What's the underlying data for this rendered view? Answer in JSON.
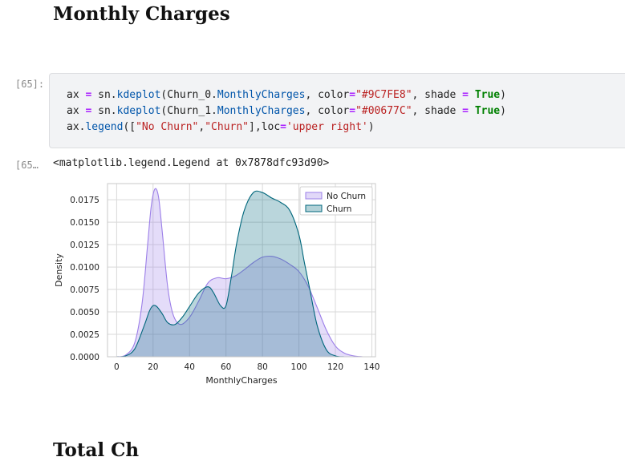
{
  "heading": "Monthly Charges",
  "next_heading": "Total Ch",
  "input_prompt": "[65]:",
  "output_prompt": "[65…",
  "code_tokens": [
    {
      "t": "ax ",
      "c": ""
    },
    {
      "t": "=",
      "c": "op"
    },
    {
      "t": " sn.",
      "c": ""
    },
    {
      "t": "kdeplot",
      "c": "fn"
    },
    {
      "t": "(Churn_0.",
      "c": ""
    },
    {
      "t": "MonthlyCharges",
      "c": "fn"
    },
    {
      "t": ", color",
      "c": ""
    },
    {
      "t": "=",
      "c": "op"
    },
    {
      "t": "\"#9C7FE8\"",
      "c": "str"
    },
    {
      "t": ", shade ",
      "c": ""
    },
    {
      "t": "=",
      "c": "op"
    },
    {
      "t": " ",
      "c": ""
    },
    {
      "t": "True",
      "c": "kw"
    },
    {
      "t": ")\n",
      "c": ""
    },
    {
      "t": "ax ",
      "c": ""
    },
    {
      "t": "=",
      "c": "op"
    },
    {
      "t": " sn.",
      "c": ""
    },
    {
      "t": "kdeplot",
      "c": "fn"
    },
    {
      "t": "(Churn_1.",
      "c": ""
    },
    {
      "t": "MonthlyCharges",
      "c": "fn"
    },
    {
      "t": ", color",
      "c": ""
    },
    {
      "t": "=",
      "c": "op"
    },
    {
      "t": "\"#00677C\"",
      "c": "str"
    },
    {
      "t": ", shade ",
      "c": ""
    },
    {
      "t": "=",
      "c": "op"
    },
    {
      "t": " ",
      "c": ""
    },
    {
      "t": "True",
      "c": "kw"
    },
    {
      "t": ")\n",
      "c": ""
    },
    {
      "t": "ax.",
      "c": ""
    },
    {
      "t": "legend",
      "c": "fn"
    },
    {
      "t": "([",
      "c": ""
    },
    {
      "t": "\"No Churn\"",
      "c": "str"
    },
    {
      "t": ",",
      "c": ""
    },
    {
      "t": "\"Churn\"",
      "c": "str"
    },
    {
      "t": "],loc",
      "c": ""
    },
    {
      "t": "=",
      "c": "op"
    },
    {
      "t": "'upper right'",
      "c": "str"
    },
    {
      "t": ")",
      "c": ""
    }
  ],
  "output_text": "<matplotlib.legend.Legend at 0x7878dfc93d90>",
  "chart_data": {
    "type": "area",
    "xlabel": "MonthlyCharges",
    "ylabel": "Density",
    "xlim": [
      -5,
      142
    ],
    "ylim": [
      0,
      0.0193
    ],
    "xticks": [
      0,
      20,
      40,
      60,
      80,
      100,
      120,
      140
    ],
    "yticks": [
      "0.0000",
      "0.0025",
      "0.0050",
      "0.0075",
      "0.0100",
      "0.0125",
      "0.0150",
      "0.0175"
    ],
    "grid": true,
    "legend_position": "upper-right",
    "series": [
      {
        "name": "No Churn",
        "color": "#9C7FE8",
        "x": [
          0,
          5,
          10,
          14,
          17,
          19,
          21,
          23,
          25,
          28,
          31,
          35,
          40,
          45,
          50,
          55,
          60,
          65,
          70,
          75,
          80,
          85,
          90,
          95,
          100,
          105,
          110,
          115,
          120,
          125,
          130,
          135
        ],
        "y": [
          0.0,
          0.0002,
          0.0016,
          0.006,
          0.0125,
          0.0168,
          0.0187,
          0.0178,
          0.014,
          0.0078,
          0.0047,
          0.0036,
          0.0044,
          0.0062,
          0.0082,
          0.0088,
          0.0087,
          0.009,
          0.0097,
          0.0105,
          0.0111,
          0.0112,
          0.0109,
          0.0103,
          0.0095,
          0.0079,
          0.0055,
          0.003,
          0.0012,
          0.0004,
          0.0001,
          0.0
        ]
      },
      {
        "name": "Churn",
        "color": "#00677C",
        "x": [
          0,
          5,
          10,
          15,
          18,
          20,
          22,
          25,
          28,
          32,
          36,
          40,
          45,
          50,
          53,
          57,
          60,
          63,
          66,
          70,
          75,
          80,
          85,
          90,
          95,
          100,
          103,
          106,
          110,
          115,
          120,
          125
        ],
        "y": [
          0.0,
          0.0001,
          0.0009,
          0.0034,
          0.0051,
          0.0057,
          0.0056,
          0.0048,
          0.0038,
          0.0036,
          0.0044,
          0.0056,
          0.0071,
          0.0078,
          0.0072,
          0.0057,
          0.0057,
          0.009,
          0.0128,
          0.0163,
          0.0183,
          0.0183,
          0.0177,
          0.0172,
          0.0163,
          0.0136,
          0.0105,
          0.0075,
          0.0035,
          0.0008,
          0.0001,
          0.0
        ]
      }
    ]
  }
}
